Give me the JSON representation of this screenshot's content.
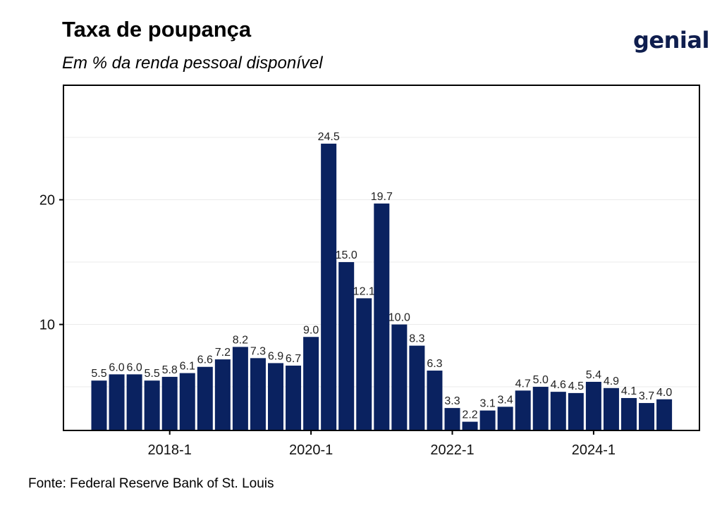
{
  "header": {
    "title": "Taxa de poupança",
    "subtitle": "Em % da renda pessoal disponível",
    "logo_text": "genial"
  },
  "footer": {
    "source": "Fonte: Federal Reserve Bank of St. Louis"
  },
  "colors": {
    "bar": "#0a2260",
    "logo": "#0f1e4e",
    "frame": "#000000",
    "grid": "#ebebeb"
  },
  "chart_data": {
    "type": "bar",
    "title": "Taxa de poupança",
    "subtitle": "Em % da renda pessoal disponível",
    "xlabel": "",
    "ylabel": "",
    "categories": [
      "2017-1",
      "2017-2",
      "2017-3",
      "2017-4",
      "2018-1",
      "2018-2",
      "2018-3",
      "2018-4",
      "2019-1",
      "2019-2",
      "2019-3",
      "2019-4",
      "2020-1",
      "2020-2",
      "2020-3",
      "2020-4",
      "2021-1",
      "2021-2",
      "2021-3",
      "2021-4",
      "2022-1",
      "2022-2",
      "2022-3",
      "2022-4",
      "2023-1",
      "2023-2",
      "2023-3",
      "2023-4",
      "2024-1",
      "2024-2",
      "2024-3",
      "2024-4",
      "2025-1"
    ],
    "values": [
      5.5,
      6.0,
      6.0,
      5.5,
      5.8,
      6.1,
      6.6,
      7.2,
      8.2,
      7.3,
      6.9,
      6.7,
      9.0,
      24.5,
      15.0,
      12.1,
      19.7,
      10.0,
      8.3,
      6.3,
      3.3,
      2.2,
      3.1,
      3.4,
      4.7,
      5.0,
      4.6,
      4.5,
      5.4,
      4.9,
      4.1,
      3.7,
      4.0
    ],
    "value_labels": [
      "5.5",
      "6.0",
      "6.0",
      "5.5",
      "5.8",
      "6.1",
      "6.6",
      "7.2",
      "8.2",
      "7.3",
      "6.9",
      "6.7",
      "9.0",
      "24.5",
      "15.0",
      "12.1",
      "19.7",
      "10.0",
      "8.3",
      "6.3",
      "3.3",
      "2.2",
      "3.1",
      "3.4",
      "4.7",
      "5.0",
      "4.6",
      "4.5",
      "5.4",
      "4.9",
      "4.1",
      "3.7",
      "4.0"
    ],
    "x_tick_labels": [
      "2018-1",
      "2020-1",
      "2022-1",
      "2024-1"
    ],
    "x_tick_categories": [
      "2018-1",
      "2020-1",
      "2022-1",
      "2024-1"
    ],
    "y_ticks": [
      10,
      20
    ],
    "y_tick_labels": [
      "10",
      "20"
    ],
    "ylim": [
      1.5,
      29.5
    ],
    "grid": true,
    "legend": "none"
  }
}
